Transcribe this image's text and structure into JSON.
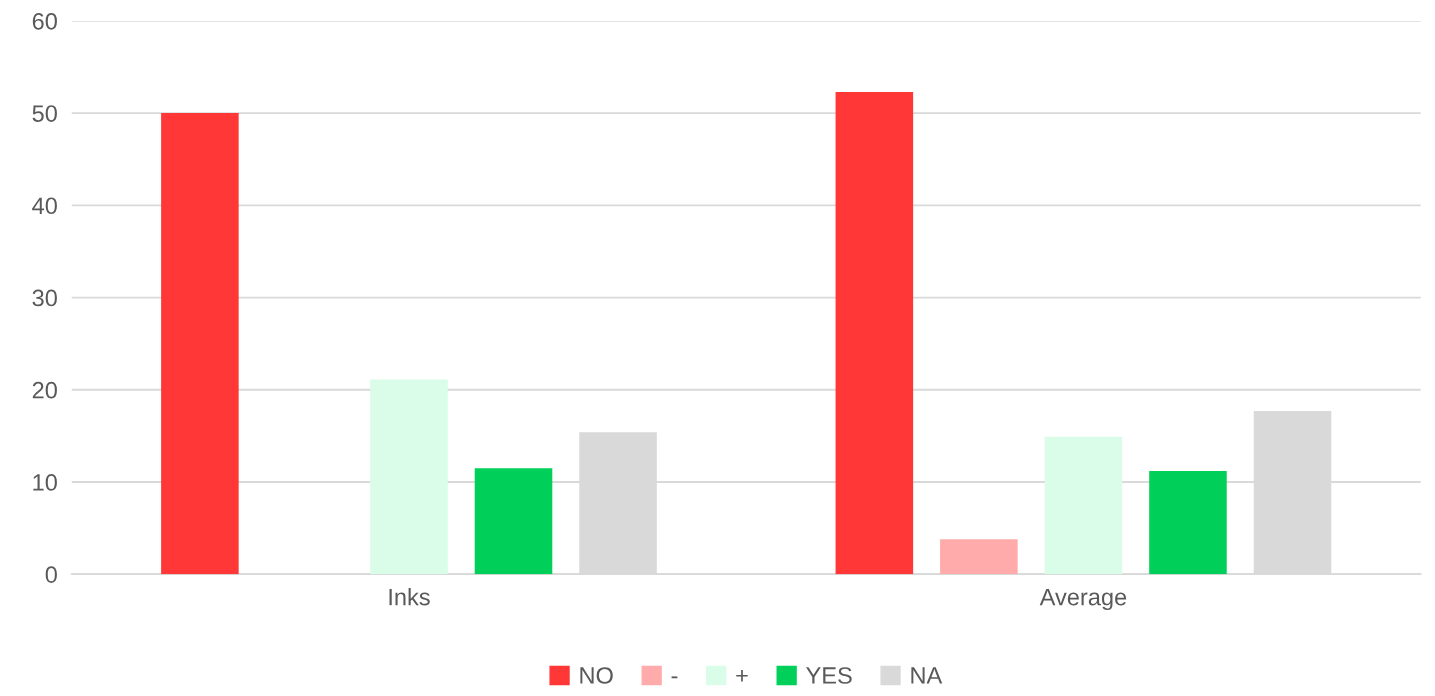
{
  "chart_data": {
    "type": "bar",
    "categories": [
      "Inks",
      "Average"
    ],
    "series": [
      {
        "name": "NO",
        "color": "#ff3737",
        "values": [
          50.0,
          52.3
        ]
      },
      {
        "name": "-",
        "color": "#ffabab",
        "values": [
          0,
          3.8
        ]
      },
      {
        "name": "+",
        "color": "#d9fde8",
        "values": [
          21.1,
          14.9
        ]
      },
      {
        "name": "YES",
        "color": "#00d05a",
        "values": [
          11.5,
          11.2
        ]
      },
      {
        "name": "NA",
        "color": "#d9d9d9",
        "values": [
          15.4,
          17.7
        ]
      }
    ],
    "ylim": [
      0,
      60
    ],
    "yticks": [
      0,
      10,
      20,
      30,
      40,
      50,
      60
    ],
    "grid": "y",
    "legend": "bottom"
  }
}
